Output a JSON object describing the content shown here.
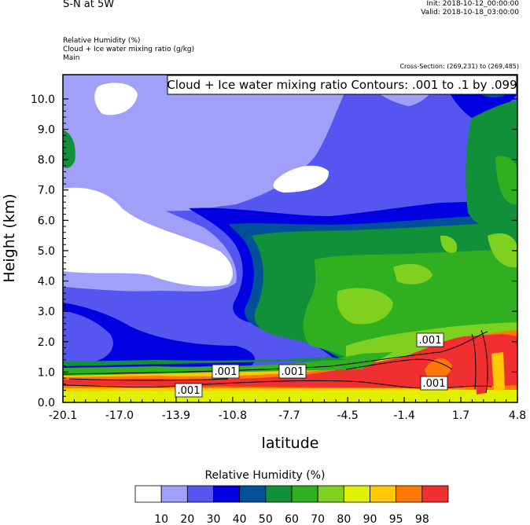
{
  "header": {
    "title": "S-N at 5W",
    "init": "Init: 2018-10-12_00:00:00",
    "valid": "Valid: 2018-10-18_03:00:00",
    "fields": [
      "Relative Humidity   (%)",
      "Cloud + Ice water mixing ratio   (g/kg)",
      "Main"
    ],
    "cross_section": "Cross-Section: (269,231) to (269,485)"
  },
  "chart_data": {
    "type": "heatmap",
    "title": "",
    "contour_label": "Cloud + Ice water mixing ratio Contours: .001 to .1 by .099",
    "xlabel": "latitude",
    "ylabel": "Height (km)",
    "xlim": [
      -20.1,
      4.8
    ],
    "ylim": [
      0.0,
      10.8
    ],
    "xticks": [
      "-20.1",
      "-17.0",
      "-13.9",
      "-10.8",
      "-7.7",
      "-4.5",
      "-1.4",
      "1.7",
      "4.8"
    ],
    "yticks": [
      "0.0",
      "1.0",
      "2.0",
      "3.0",
      "4.0",
      "5.0",
      "6.0",
      "7.0",
      "8.0",
      "9.0",
      "10.0"
    ],
    "contour_value_labels": [
      ".001",
      ".001",
      ".001",
      ".001",
      ".001"
    ],
    "colorbar": {
      "title": "Relative Humidity  (%)",
      "labels": [
        "10",
        "20",
        "30",
        "40",
        "50",
        "60",
        "70",
        "80",
        "90",
        "95",
        "98"
      ],
      "colors": [
        "#ffffff",
        "#a0a0f8",
        "#5555ef",
        "#0000e0",
        "#00509a",
        "#109038",
        "#30b020",
        "#80d020",
        "#dff000",
        "#ffc800",
        "#ff7800",
        "#f03030"
      ]
    }
  }
}
